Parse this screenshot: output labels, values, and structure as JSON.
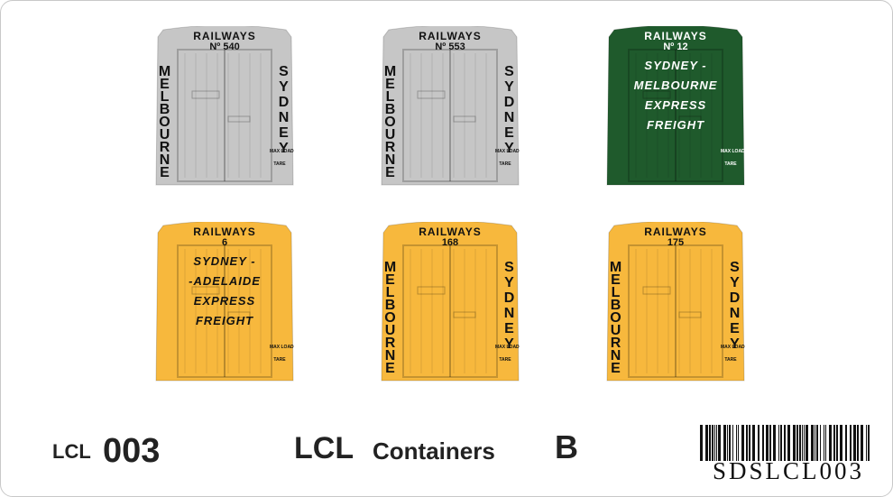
{
  "containers": [
    {
      "color": "#c6c6c6",
      "ink": "#111111",
      "railways": "RAILWAYS",
      "number": "Nº 540",
      "left": "MELBOURNE",
      "right": "SYDNEY",
      "max_load": "MAX LOAD",
      "tare": "TARE"
    },
    {
      "color": "#c6c6c6",
      "ink": "#111111",
      "railways": "RAILWAYS",
      "number": "Nº 553",
      "left": "MELBOURNE",
      "right": "SYDNEY",
      "max_load": "MAX LOAD",
      "tare": "TARE"
    },
    {
      "color": "#1f5a2c",
      "ink": "#ffffff",
      "railways": "RAILWAYS",
      "number": "Nº 12",
      "center": [
        "SYDNEY -",
        "MELBOURNE",
        "EXPRESS",
        "FREIGHT"
      ],
      "max_load": "MAX LOAD",
      "tare": "TARE"
    },
    {
      "color": "#f7b83d",
      "ink": "#111111",
      "railways": "RAILWAYS",
      "number": "6",
      "center": [
        "SYDNEY -",
        "-ADELAIDE",
        "EXPRESS",
        "FREIGHT"
      ],
      "max_load": "MAX LOAD",
      "tare": "TARE"
    },
    {
      "color": "#f7b83d",
      "ink": "#111111",
      "railways": "RAILWAYS",
      "number": "168",
      "left": "MELBOURNE",
      "right": "SYDNEY",
      "max_load": "MAX LOAD",
      "tare": "TARE"
    },
    {
      "color": "#f7b83d",
      "ink": "#111111",
      "railways": "RAILWAYS",
      "number": "175",
      "left": "MELBOURNE",
      "right": "SYDNEY",
      "max_load": "MAX LOAD",
      "tare": "TARE"
    }
  ],
  "footer": {
    "code_prefix": "LCL",
    "code_number": "003",
    "title": "LCL",
    "subtitle": "Containers",
    "variant": "B",
    "barcode_text": "SDSLCL003"
  }
}
